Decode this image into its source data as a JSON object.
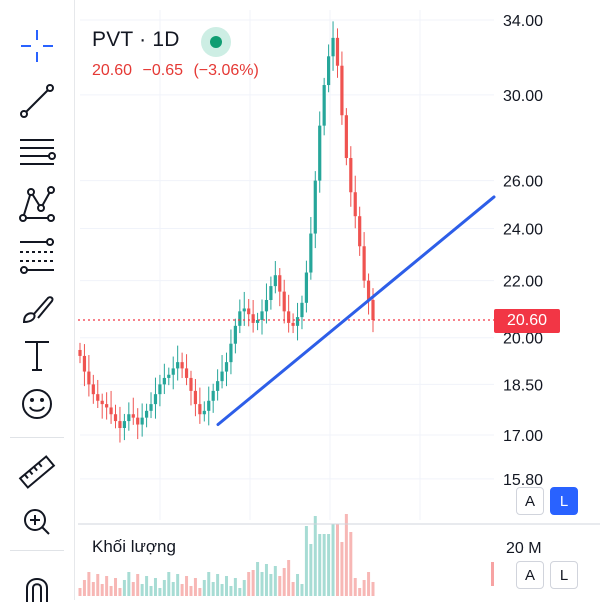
{
  "toolbar": {
    "tools": [
      {
        "name": "crosshair-icon"
      },
      {
        "name": "trend-line-icon"
      },
      {
        "name": "horizontal-lines-icon"
      },
      {
        "name": "pattern-icon"
      },
      {
        "name": "fib-retracement-icon"
      },
      {
        "name": "brush-icon"
      },
      {
        "name": "text-icon"
      },
      {
        "name": "emoji-icon"
      },
      {
        "name": "ruler-icon"
      },
      {
        "name": "zoom-in-icon"
      },
      {
        "name": "magnet-icon"
      }
    ]
  },
  "header": {
    "symbol": "PVT · 1D",
    "last_price": "20.60",
    "change": "−0.65",
    "change_pct": "(−3.06%)"
  },
  "price_tag": "20.60",
  "volume": {
    "title": "Khối lượng",
    "axis_label": "20 M"
  },
  "buttons": {
    "auto_label": "A",
    "log_label": "L"
  },
  "colors": {
    "up": "#26a69a",
    "down": "#ef5350",
    "trendline": "#2d5ee8",
    "price_tag": "#f23645"
  },
  "chart_data": {
    "type": "candlestick",
    "symbol": "PVT",
    "interval": "1D",
    "scale": "log",
    "y_ticks": [
      34.0,
      30.0,
      26.0,
      24.0,
      22.0,
      20.0,
      18.5,
      17.0,
      15.8
    ],
    "y_tick_labels": [
      "34.00",
      "30.00",
      "26.00",
      "24.00",
      "22.00",
      "20.00",
      "18.50",
      "17.00",
      "15.80"
    ],
    "last_price": 20.6,
    "close_series": [
      19.4,
      18.9,
      18.5,
      18.2,
      18.0,
      17.9,
      17.8,
      17.6,
      17.4,
      17.2,
      17.4,
      17.6,
      17.5,
      17.3,
      17.5,
      17.7,
      17.9,
      18.2,
      18.5,
      18.7,
      18.8,
      19.0,
      19.2,
      19.0,
      18.7,
      18.3,
      17.9,
      17.6,
      17.7,
      18.0,
      18.3,
      18.6,
      18.9,
      19.2,
      19.8,
      20.4,
      20.9,
      21.0,
      20.8,
      20.5,
      20.6,
      20.9,
      21.3,
      21.8,
      22.2,
      21.6,
      20.9,
      20.5,
      20.4,
      20.7,
      21.2,
      22.3,
      23.8,
      26.0,
      28.5,
      30.5,
      32.0,
      33.0,
      31.5,
      29.0,
      27.0,
      25.5,
      24.5,
      23.3,
      22.0,
      21.3,
      20.6
    ],
    "trendline": {
      "start": [
        0.42,
        17.3
      ],
      "end": [
        1.0,
        25.3
      ],
      "note": "support trend line from low through later lows"
    },
    "volume_axis": [
      "20 M"
    ]
  }
}
